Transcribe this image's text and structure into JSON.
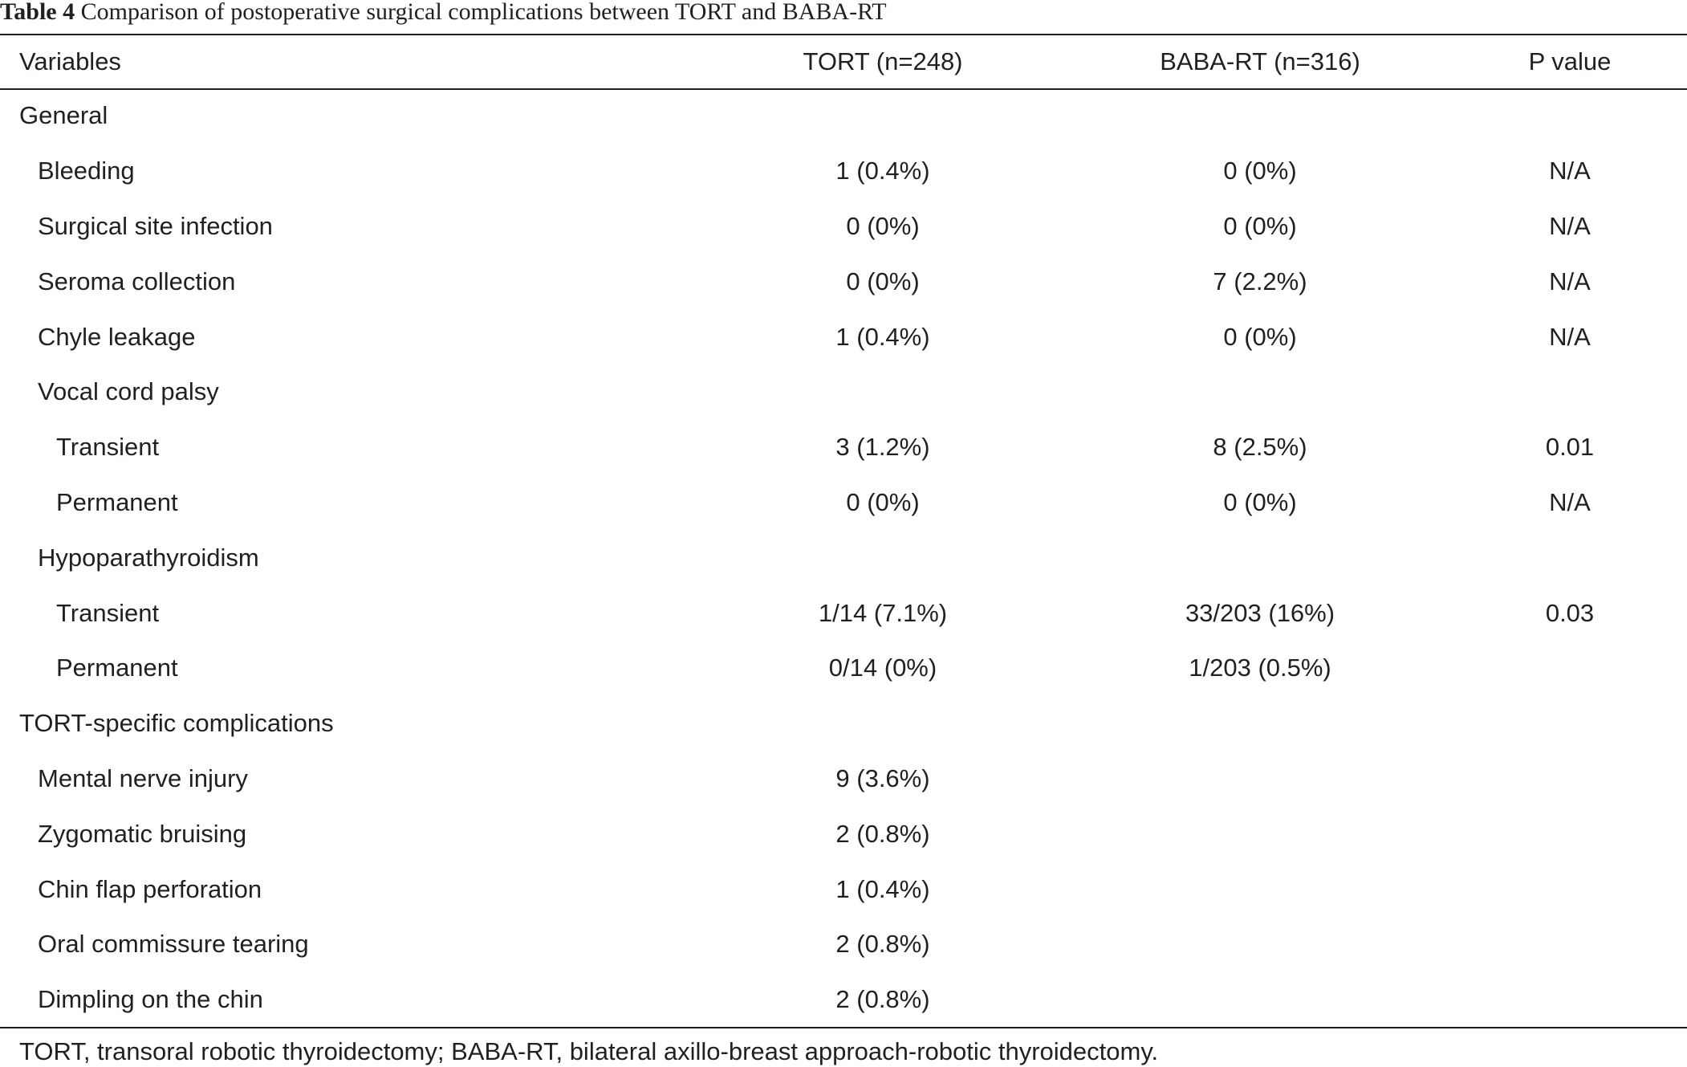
{
  "caption": {
    "label": "Table 4",
    "text": "Comparison of postoperative surgical complications between TORT and BABA-RT"
  },
  "columns": [
    "Variables",
    "TORT (n=248)",
    "BABA-RT (n=316)",
    "P value"
  ],
  "rows": [
    {
      "level": 0,
      "cells": [
        "General",
        "",
        "",
        ""
      ]
    },
    {
      "level": 1,
      "cells": [
        "Bleeding",
        "1 (0.4%)",
        "0 (0%)",
        "N/A"
      ]
    },
    {
      "level": 1,
      "cells": [
        "Surgical site infection",
        "0 (0%)",
        "0 (0%)",
        "N/A"
      ]
    },
    {
      "level": 1,
      "cells": [
        "Seroma collection",
        "0 (0%)",
        "7 (2.2%)",
        "N/A"
      ]
    },
    {
      "level": 1,
      "cells": [
        "Chyle leakage",
        "1 (0.4%)",
        "0 (0%)",
        "N/A"
      ]
    },
    {
      "level": 1,
      "cells": [
        "Vocal cord palsy",
        "",
        "",
        ""
      ]
    },
    {
      "level": 2,
      "cells": [
        "Transient",
        "3 (1.2%)",
        "8 (2.5%)",
        "0.01"
      ]
    },
    {
      "level": 2,
      "cells": [
        "Permanent",
        "0 (0%)",
        "0 (0%)",
        "N/A"
      ]
    },
    {
      "level": 1,
      "cells": [
        "Hypoparathyroidism",
        "",
        "",
        ""
      ]
    },
    {
      "level": 2,
      "cells": [
        "Transient",
        "1/14 (7.1%)",
        "33/203 (16%)",
        "0.03"
      ]
    },
    {
      "level": 2,
      "cells": [
        "Permanent",
        "0/14 (0%)",
        "1/203 (0.5%)",
        ""
      ]
    },
    {
      "level": 0,
      "cells": [
        "TORT-specific complications",
        "",
        "",
        ""
      ]
    },
    {
      "level": 1,
      "cells": [
        "Mental nerve injury",
        "9 (3.6%)",
        "",
        ""
      ]
    },
    {
      "level": 1,
      "cells": [
        "Zygomatic bruising",
        "2 (0.8%)",
        "",
        ""
      ]
    },
    {
      "level": 1,
      "cells": [
        "Chin flap perforation",
        "1 (0.4%)",
        "",
        ""
      ]
    },
    {
      "level": 1,
      "cells": [
        "Oral commissure tearing",
        "2 (0.8%)",
        "",
        ""
      ]
    },
    {
      "level": 1,
      "cells": [
        "Dimpling on the chin",
        "2 (0.8%)",
        "",
        ""
      ]
    }
  ],
  "footnote": "TORT, transoral robotic thyroidectomy; BABA-RT, bilateral axillo-breast approach-robotic thyroidectomy."
}
